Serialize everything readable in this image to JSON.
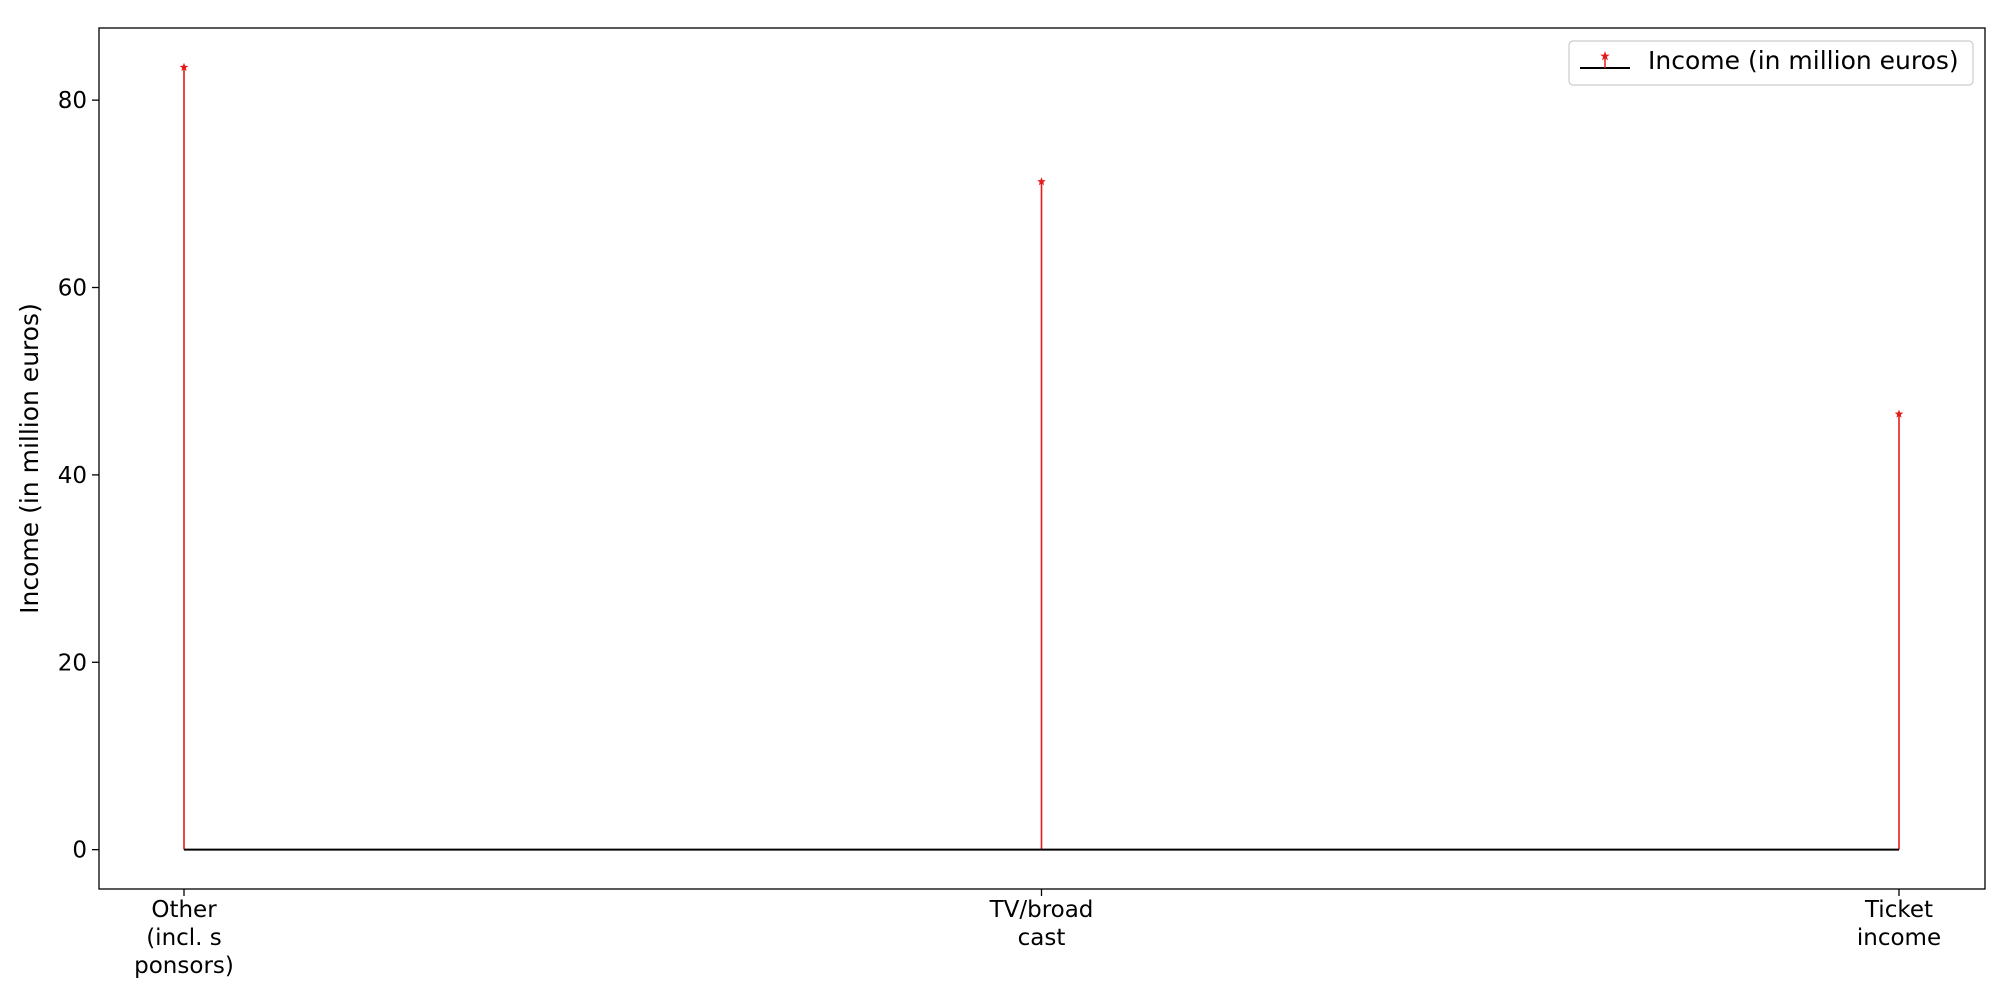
{
  "chart_data": {
    "type": "stem",
    "categories": [
      [
        "Other",
        "(incl. s",
        "ponsors)"
      ],
      [
        "TV/broad",
        "cast"
      ],
      [
        "Ticket",
        "income"
      ]
    ],
    "values": [
      83.5,
      71.3,
      46.5
    ],
    "title": "",
    "xlabel": "",
    "ylabel": "Income (in million euros)",
    "ylim": [
      -4.2,
      87.7
    ],
    "yticks": [
      0,
      20,
      40,
      60,
      80
    ],
    "grid": false,
    "legend": {
      "position": "top-right",
      "label": "Income (in million euros)"
    },
    "colors": {
      "stem": "#e41a1c",
      "baseline": "#000000",
      "axes": "#000000"
    },
    "marker": "star"
  }
}
